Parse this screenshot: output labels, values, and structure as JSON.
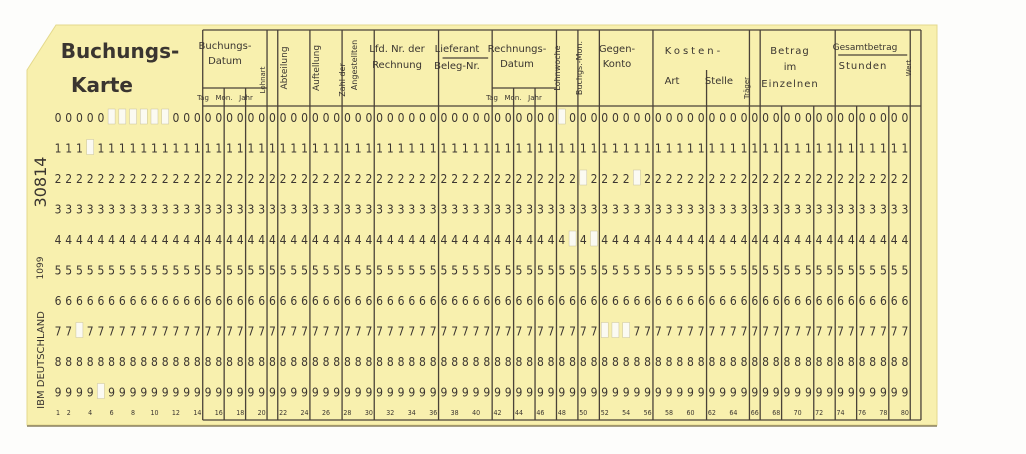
{
  "card": {
    "title_line1": "Buchungs-",
    "title_line2": "Karte",
    "serial": "30814",
    "form_number": "1099",
    "maker": "IBM DEUTSCHLAND",
    "card_color": "#f8f0ae",
    "ink_color": "#3a3530"
  },
  "fields": {
    "buchungs_datum": [
      "Buchungs-",
      "Datum"
    ],
    "date_parts": [
      "Tag",
      "Mon.",
      "Jahr"
    ],
    "lohnart": "Lohnart",
    "abteilung": "Abteilung",
    "auftellung": "Auftellung",
    "zahl_der_angestellten": [
      "Zahl der",
      "Angestellten"
    ],
    "lfd_nr": [
      "Lfd. Nr. der",
      "Rechnung"
    ],
    "lieferant": [
      "Lieferant",
      "Beleg-Nr."
    ],
    "rechnungs_datum": [
      "Rechnungs-",
      "Datum"
    ],
    "lohnwoche": "Lohnwoche",
    "buchgs_mon": "Buchgs.-Mon.",
    "gegen_konto": [
      "Gegen-",
      "Konto"
    ],
    "kosten": "Kosten-",
    "kosten_art": "Art",
    "kosten_stelle": "Stelle",
    "traeger": "Träger",
    "betrag": [
      "Betrag",
      "im",
      "Einzelnen"
    ],
    "gesamtbetrag": [
      "Gesamtbetrag",
      "Stunden"
    ],
    "wert": "Wert"
  },
  "digit_rows": [
    "0",
    "1",
    "2",
    "3",
    "4",
    "5",
    "6",
    "7",
    "8",
    "9"
  ],
  "column_count": 80,
  "column_numbers": [
    "1",
    "2",
    "4",
    "6",
    "8",
    "10",
    "12",
    "14",
    "16",
    "18",
    "20",
    "22",
    "24",
    "26",
    "28",
    "30",
    "32",
    "34",
    "36",
    "38",
    "40",
    "42",
    "44",
    "46",
    "48",
    "50",
    "52",
    "54",
    "56",
    "58",
    "60",
    "62",
    "64",
    "66",
    "68",
    "70",
    "72",
    "74",
    "76",
    "78",
    "80"
  ],
  "punches": [
    {
      "row": 0,
      "col": 6
    },
    {
      "row": 0,
      "col": 7
    },
    {
      "row": 0,
      "col": 8
    },
    {
      "row": 0,
      "col": 9
    },
    {
      "row": 0,
      "col": 10
    },
    {
      "row": 0,
      "col": 11
    },
    {
      "row": 1,
      "col": 4
    },
    {
      "row": 7,
      "col": 3
    },
    {
      "row": 9,
      "col": 5
    },
    {
      "row": 0,
      "col": 48
    },
    {
      "row": 2,
      "col": 50
    },
    {
      "row": 2,
      "col": 55
    },
    {
      "row": 4,
      "col": 49
    },
    {
      "row": 4,
      "col": 51
    },
    {
      "row": 7,
      "col": 52
    },
    {
      "row": 7,
      "col": 53
    },
    {
      "row": 7,
      "col": 54
    }
  ]
}
